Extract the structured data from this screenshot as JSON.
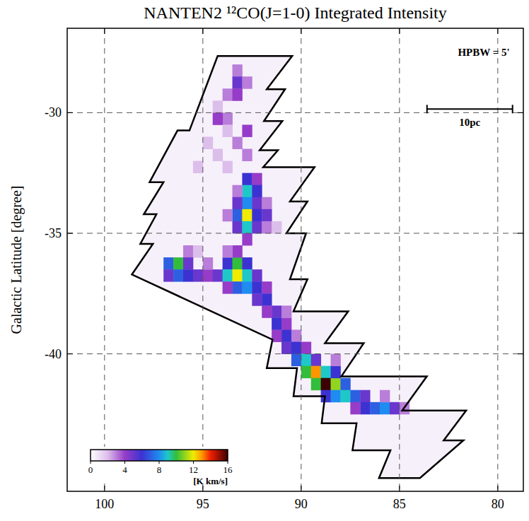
{
  "chart_data": {
    "type": "heatmap",
    "title": "NANTEN2 ¹²CO(J=1-0) Integrated Intensity",
    "y_label": "Galactic Latitude [degree]",
    "xlim": [
      101.9,
      78.7
    ],
    "xticks": [
      100,
      95,
      90,
      85,
      80
    ],
    "ylim": [
      -45.7,
      -26.5
    ],
    "yticks": [
      -30,
      -35,
      -40
    ],
    "grid": true,
    "cell_size": [
      0.5,
      0.5
    ],
    "cells": [
      [
        93.25,
        -28.25,
        3
      ],
      [
        93.25,
        -28.75,
        5
      ],
      [
        92.75,
        -28.75,
        3
      ],
      [
        93.75,
        -29.25,
        3
      ],
      [
        93.25,
        -29.25,
        4
      ],
      [
        94.25,
        -29.75,
        2
      ],
      [
        93.75,
        -30.25,
        3
      ],
      [
        94.25,
        -30.25,
        4
      ],
      [
        93.75,
        -30.75,
        2
      ],
      [
        92.75,
        -30.75,
        4
      ],
      [
        94.75,
        -31.25,
        2
      ],
      [
        93.25,
        -31.25,
        3
      ],
      [
        92.75,
        -31.75,
        3
      ],
      [
        94.25,
        -31.75,
        2
      ],
      [
        95.25,
        -32.25,
        2
      ],
      [
        93.75,
        -32.25,
        2
      ],
      [
        92.75,
        -32.75,
        6
      ],
      [
        92.25,
        -32.75,
        4
      ],
      [
        92.75,
        -33.25,
        9
      ],
      [
        92.25,
        -33.25,
        6
      ],
      [
        93.25,
        -33.25,
        3
      ],
      [
        92.75,
        -33.75,
        8
      ],
      [
        93.25,
        -33.75,
        5
      ],
      [
        92.25,
        -33.75,
        5
      ],
      [
        91.75,
        -33.75,
        3
      ],
      [
        93.25,
        -34.25,
        7
      ],
      [
        92.75,
        -34.25,
        12
      ],
      [
        92.25,
        -34.25,
        6
      ],
      [
        91.75,
        -34.25,
        5
      ],
      [
        93.25,
        -34.75,
        5
      ],
      [
        92.75,
        -34.75,
        9
      ],
      [
        92.25,
        -34.75,
        5
      ],
      [
        91.75,
        -34.75,
        3
      ],
      [
        92.75,
        -35.25,
        4
      ],
      [
        93.75,
        -34.25,
        3
      ],
      [
        91.25,
        -34.75,
        2
      ],
      [
        95.75,
        -35.75,
        3
      ],
      [
        95.25,
        -35.75,
        2
      ],
      [
        96.75,
        -36.25,
        7
      ],
      [
        96.25,
        -36.25,
        10
      ],
      [
        96.75,
        -36.75,
        5
      ],
      [
        96.25,
        -36.75,
        7
      ],
      [
        95.75,
        -36.75,
        6
      ],
      [
        95.75,
        -36.25,
        5
      ],
      [
        95.25,
        -36.75,
        5
      ],
      [
        94.75,
        -36.75,
        4
      ],
      [
        94.75,
        -36.25,
        3
      ],
      [
        94.25,
        -36.75,
        5
      ],
      [
        93.75,
        -36.25,
        6
      ],
      [
        93.75,
        -36.75,
        9
      ],
      [
        93.25,
        -36.25,
        10
      ],
      [
        93.25,
        -36.75,
        12
      ],
      [
        92.75,
        -36.25,
        6
      ],
      [
        92.75,
        -36.75,
        9
      ],
      [
        93.25,
        -37.25,
        7
      ],
      [
        92.75,
        -37.25,
        8
      ],
      [
        92.25,
        -36.75,
        5
      ],
      [
        92.25,
        -37.25,
        6
      ],
      [
        93.75,
        -37.25,
        4
      ],
      [
        91.75,
        -37.25,
        4
      ],
      [
        92.25,
        -37.75,
        5
      ],
      [
        91.75,
        -37.75,
        6
      ],
      [
        93.25,
        -35.75,
        4
      ],
      [
        93.75,
        -35.75,
        3
      ],
      [
        91.25,
        -38.25,
        5
      ],
      [
        91.75,
        -38.25,
        4
      ],
      [
        91.25,
        -38.75,
        6
      ],
      [
        90.75,
        -38.75,
        4
      ],
      [
        90.75,
        -39.25,
        6
      ],
      [
        91.25,
        -39.25,
        4
      ],
      [
        90.25,
        -39.25,
        3
      ],
      [
        90.75,
        -39.75,
        5
      ],
      [
        90.25,
        -39.75,
        6
      ],
      [
        89.75,
        -39.75,
        4
      ],
      [
        90.25,
        -40.25,
        7
      ],
      [
        89.75,
        -40.25,
        9
      ],
      [
        89.25,
        -40.25,
        5
      ],
      [
        89.75,
        -40.75,
        10
      ],
      [
        89.25,
        -40.75,
        13
      ],
      [
        88.75,
        -40.75,
        9
      ],
      [
        89.25,
        -41.25,
        10
      ],
      [
        88.75,
        -41.25,
        16
      ],
      [
        88.25,
        -41.25,
        11
      ],
      [
        88.25,
        -40.75,
        6
      ],
      [
        88.75,
        -41.75,
        6
      ],
      [
        88.25,
        -41.75,
        8
      ],
      [
        87.75,
        -41.25,
        7
      ],
      [
        87.75,
        -41.75,
        9
      ],
      [
        87.25,
        -41.75,
        7
      ],
      [
        86.75,
        -41.75,
        5
      ],
      [
        86.75,
        -42.25,
        6
      ],
      [
        86.25,
        -42.25,
        7
      ],
      [
        85.75,
        -42.25,
        8
      ],
      [
        85.25,
        -42.25,
        5
      ],
      [
        85.75,
        -41.75,
        3
      ],
      [
        84.75,
        -42.25,
        3
      ],
      [
        87.25,
        -42.25,
        4
      ],
      [
        88.25,
        -40.25,
        3
      ],
      [
        90.75,
        -38.25,
        3
      ]
    ],
    "survey_outline": [
      [
        94.25,
        -27.65
      ],
      [
        90.46,
        -27.65
      ],
      [
        91.75,
        -29.03
      ],
      [
        90.82,
        -29.03
      ],
      [
        91.89,
        -30.35
      ],
      [
        90.96,
        -30.35
      ],
      [
        92.11,
        -31.56
      ],
      [
        91.18,
        -31.56
      ],
      [
        91.93,
        -32.26
      ],
      [
        89.32,
        -32.26
      ],
      [
        90.57,
        -33.68
      ],
      [
        89.68,
        -33.68
      ],
      [
        90.75,
        -35.0
      ],
      [
        89.75,
        -35.0
      ],
      [
        90.57,
        -36.91
      ],
      [
        89.68,
        -36.91
      ],
      [
        90.39,
        -38.24
      ],
      [
        87.61,
        -38.24
      ],
      [
        88.79,
        -39.56
      ],
      [
        86.82,
        -39.56
      ],
      [
        87.96,
        -40.94
      ],
      [
        83.61,
        -40.94
      ],
      [
        84.86,
        -42.35
      ],
      [
        81.61,
        -42.35
      ],
      [
        82.75,
        -43.59
      ],
      [
        81.75,
        -43.59
      ],
      [
        83.96,
        -45.15
      ],
      [
        86.04,
        -45.15
      ],
      [
        85.46,
        -44.0
      ],
      [
        87.39,
        -44.0
      ],
      [
        87.18,
        -42.88
      ],
      [
        88.96,
        -42.88
      ],
      [
        88.79,
        -41.76
      ],
      [
        90.39,
        -41.76
      ],
      [
        90.21,
        -40.59
      ],
      [
        91.75,
        -40.59
      ],
      [
        91.46,
        -39.41
      ],
      [
        98.61,
        -36.71
      ],
      [
        97.54,
        -35.44
      ],
      [
        98.18,
        -35.44
      ],
      [
        97.36,
        -34.21
      ],
      [
        98.0,
        -34.21
      ],
      [
        97.0,
        -32.88
      ],
      [
        97.71,
        -32.88
      ],
      [
        96.29,
        -30.74
      ],
      [
        95.68,
        -30.74
      ]
    ],
    "annotations": [
      "HPBW = 5'"
    ],
    "scale_bar": {
      "label": "10pc",
      "lon": [
        83.6,
        79.25
      ],
      "lat": -29.85
    },
    "colorbar": {
      "range": [
        0,
        16
      ],
      "ticks": [
        0,
        4,
        8,
        12,
        16
      ],
      "label": "[K km/s]"
    }
  }
}
